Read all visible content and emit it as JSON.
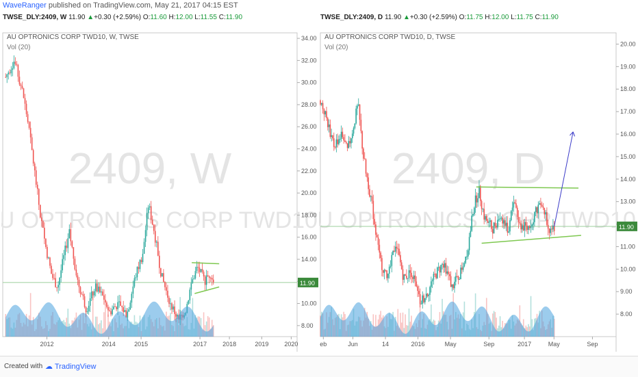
{
  "publish": {
    "author": "WaveRanger",
    "line": "published on TradingView.com, May 21, 2017 04:15 EST"
  },
  "left_header": {
    "symbol": "TWSE_DLY:2409, W",
    "last": "11.90",
    "change": "+0.30 (+2.59%)",
    "open": "11.60",
    "high": "12.00",
    "low": "11.55",
    "close": "11.90"
  },
  "right_header": {
    "symbol": "TWSE_DLY:2409, D",
    "last": "11.90",
    "change": "+0.30 (+2.59%)",
    "open": "11.75",
    "high": "12.00",
    "low": "11.75",
    "close": "11.90"
  },
  "footer": {
    "created_with": "Created with",
    "brand": "TradingView"
  },
  "colors": {
    "up": "#26a69a",
    "down": "#ef5350",
    "volume": "#4aa3df",
    "trend": "#7ec850",
    "projection": "#3a3ac8",
    "price_label_bg": "#3b8a3b"
  },
  "chart_data": [
    {
      "type": "candlestick",
      "title": "AU OPTRONICS CORP TWD10, W, TWSE",
      "indicator": "Vol (20)",
      "watermark_symbol": "2409, W",
      "watermark_name": "AU OPTRONICS CORP TWD10",
      "timeframe": "weekly",
      "ylim": [
        7,
        34.5
      ],
      "y_ticks": [
        "34.00",
        "32.00",
        "30.00",
        "28.00",
        "26.00",
        "24.00",
        "22.00",
        "20.00",
        "18.00",
        "16.00",
        "14.00",
        "12.00",
        "10.00",
        "8.00"
      ],
      "x_ticks": [
        "2012",
        "2014",
        "2015",
        "2017",
        "2018",
        "2019",
        "2020"
      ],
      "last_price_label": "11.90",
      "last_price": 11.9,
      "price_path": [
        {
          "x": 2010.2,
          "y": 30.5
        },
        {
          "x": 2010.5,
          "y": 32.0
        },
        {
          "x": 2010.8,
          "y": 29.0
        },
        {
          "x": 2011.0,
          "y": 26.0
        },
        {
          "x": 2011.2,
          "y": 22.0
        },
        {
          "x": 2011.4,
          "y": 18.0
        },
        {
          "x": 2011.6,
          "y": 15.0
        },
        {
          "x": 2011.8,
          "y": 12.5
        },
        {
          "x": 2012.0,
          "y": 11.5
        },
        {
          "x": 2012.2,
          "y": 14.0
        },
        {
          "x": 2012.4,
          "y": 16.5
        },
        {
          "x": 2012.7,
          "y": 12.0
        },
        {
          "x": 2013.0,
          "y": 9.5
        },
        {
          "x": 2013.3,
          "y": 11.5
        },
        {
          "x": 2013.6,
          "y": 10.5
        },
        {
          "x": 2013.8,
          "y": 9.2
        },
        {
          "x": 2014.1,
          "y": 10.0
        },
        {
          "x": 2014.4,
          "y": 9.0
        },
        {
          "x": 2014.7,
          "y": 12.5
        },
        {
          "x": 2014.95,
          "y": 14.5
        },
        {
          "x": 2015.15,
          "y": 19.0
        },
        {
          "x": 2015.35,
          "y": 16.5
        },
        {
          "x": 2015.6,
          "y": 12.5
        },
        {
          "x": 2015.9,
          "y": 10.0
        },
        {
          "x": 2016.2,
          "y": 8.5
        },
        {
          "x": 2016.45,
          "y": 9.5
        },
        {
          "x": 2016.65,
          "y": 12.0
        },
        {
          "x": 2016.85,
          "y": 13.3
        },
        {
          "x": 2017.1,
          "y": 12.0
        },
        {
          "x": 2017.3,
          "y": 12.8
        },
        {
          "x": 2017.4,
          "y": 11.9
        }
      ],
      "trendlines": [
        {
          "x1": 2016.65,
          "y1": 13.7,
          "x2": 2017.6,
          "y2": 13.6
        },
        {
          "x1": 2016.75,
          "y1": 10.9,
          "x2": 2017.6,
          "y2": 11.5
        }
      ],
      "xlim": [
        2010.1,
        2020.3
      ]
    },
    {
      "type": "candlestick",
      "title": "AU OPTRONICS CORP TWD10, D, TWSE",
      "indicator": "Vol (20)",
      "watermark_symbol": "2409, D",
      "watermark_name": "AU OPTRONICS CORP TWD10",
      "timeframe": "daily",
      "ylim": [
        7.0,
        20.5
      ],
      "y_ticks": [
        "20.00",
        "19.00",
        "18.00",
        "17.00",
        "16.00",
        "15.00",
        "14.00",
        "13.00",
        "12.00",
        "11.00",
        "10.00",
        "9.00",
        "8.00"
      ],
      "x_ticks": [
        "eb",
        "Jun",
        "14",
        "2016",
        "May",
        "Sep",
        "2017",
        "May",
        "Sep"
      ],
      "last_price_label": "11.90",
      "last_price": 11.9,
      "price_path": [
        {
          "x": 0.0,
          "y": 17.5
        },
        {
          "x": 0.02,
          "y": 16.8
        },
        {
          "x": 0.05,
          "y": 15.5
        },
        {
          "x": 0.08,
          "y": 16.0
        },
        {
          "x": 0.1,
          "y": 15.2
        },
        {
          "x": 0.12,
          "y": 16.2
        },
        {
          "x": 0.14,
          "y": 17.3
        },
        {
          "x": 0.16,
          "y": 15.0
        },
        {
          "x": 0.19,
          "y": 13.0
        },
        {
          "x": 0.22,
          "y": 10.5
        },
        {
          "x": 0.25,
          "y": 9.5
        },
        {
          "x": 0.28,
          "y": 11.2
        },
        {
          "x": 0.31,
          "y": 9.6
        },
        {
          "x": 0.34,
          "y": 9.9
        },
        {
          "x": 0.37,
          "y": 8.5
        },
        {
          "x": 0.4,
          "y": 9.0
        },
        {
          "x": 0.43,
          "y": 9.8
        },
        {
          "x": 0.46,
          "y": 10.3
        },
        {
          "x": 0.49,
          "y": 9.2
        },
        {
          "x": 0.52,
          "y": 9.8
        },
        {
          "x": 0.55,
          "y": 11.0
        },
        {
          "x": 0.57,
          "y": 12.8
        },
        {
          "x": 0.59,
          "y": 13.5
        },
        {
          "x": 0.61,
          "y": 12.3
        },
        {
          "x": 0.64,
          "y": 11.8
        },
        {
          "x": 0.67,
          "y": 12.4
        },
        {
          "x": 0.7,
          "y": 11.7
        },
        {
          "x": 0.72,
          "y": 13.2
        },
        {
          "x": 0.74,
          "y": 12.0
        },
        {
          "x": 0.77,
          "y": 11.8
        },
        {
          "x": 0.8,
          "y": 12.5
        },
        {
          "x": 0.82,
          "y": 13.1
        },
        {
          "x": 0.84,
          "y": 12.3
        },
        {
          "x": 0.86,
          "y": 11.5
        },
        {
          "x": 0.87,
          "y": 11.9
        }
      ],
      "trendlines": [
        {
          "x1": 0.58,
          "y1": 13.65,
          "x2": 0.96,
          "y2": 13.6
        },
        {
          "x1": 0.6,
          "y1": 11.15,
          "x2": 0.97,
          "y2": 11.5
        }
      ],
      "projection": {
        "x1": 0.87,
        "y1": 11.9,
        "x2": 0.94,
        "y2": 16.1
      },
      "xlim": [
        0.0,
        1.1
      ]
    }
  ]
}
